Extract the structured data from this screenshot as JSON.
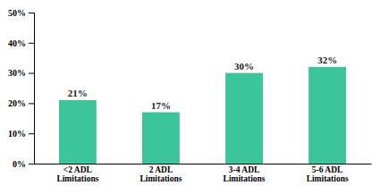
{
  "chart_data": {
    "type": "bar",
    "categories": [
      "<2 ADL\nLimitations",
      "2 ADL\nLimitations",
      "3-4 ADL\nLimitations",
      "5-6 ADL\nLimitations"
    ],
    "values": [
      21,
      17,
      30,
      32
    ],
    "value_labels": [
      "21%",
      "17%",
      "30%",
      "32%"
    ],
    "data_labels": true,
    "color": "#3CC49A",
    "ylim": [
      0,
      50
    ],
    "yticks": [
      {
        "value": 0,
        "label": "0%"
      },
      {
        "value": 10,
        "label": "10%"
      },
      {
        "value": 20,
        "label": "20%"
      },
      {
        "value": 30,
        "label": "30%"
      },
      {
        "value": 40,
        "label": "40%"
      },
      {
        "value": 50,
        "label": "50%"
      }
    ],
    "grid": false
  }
}
